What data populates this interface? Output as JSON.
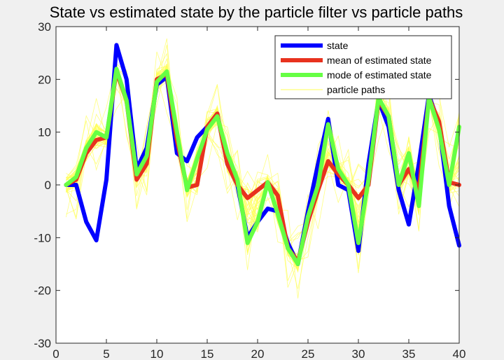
{
  "chart_data": {
    "type": "line",
    "title": "State vs estimated state by the particle filter vs particle paths",
    "xlabel": "",
    "ylabel": "",
    "xlim": [
      0,
      40
    ],
    "ylim": [
      -30,
      30
    ],
    "xticks": [
      0,
      5,
      10,
      15,
      20,
      25,
      30,
      35,
      40
    ],
    "yticks": [
      -30,
      -20,
      -10,
      0,
      10,
      20,
      30
    ],
    "xtick_labels": [
      "0",
      "5",
      "10",
      "15",
      "20",
      "25",
      "30",
      "35",
      "40"
    ],
    "ytick_labels": [
      "-30",
      "-20",
      "-10",
      "0",
      "10",
      "20",
      "30"
    ],
    "grid": false,
    "legend_position": "top-right",
    "x": [
      1,
      2,
      3,
      4,
      5,
      6,
      7,
      8,
      9,
      10,
      11,
      12,
      13,
      14,
      15,
      16,
      17,
      18,
      19,
      20,
      21,
      22,
      23,
      24,
      25,
      26,
      27,
      28,
      29,
      30,
      31,
      32,
      33,
      34,
      35,
      36,
      37,
      38,
      39,
      40
    ],
    "series": [
      {
        "name": "state",
        "color": "#0000ff",
        "values": [
          0,
          0,
          -7,
          -10.5,
          1,
          26.5,
          20,
          3,
          7,
          19,
          20.5,
          6,
          4.5,
          9,
          11,
          13.5,
          4,
          0,
          -10,
          -7,
          -4.5,
          -5,
          -11,
          -15,
          -5,
          4,
          12.5,
          0,
          -1,
          -12.5,
          4,
          16,
          11,
          -1,
          -7.5,
          4,
          17,
          11.5,
          -4,
          -11.5
        ]
      },
      {
        "name": "mean of estimated state",
        "color": "#e8321e",
        "values": [
          0,
          1,
          6,
          8.5,
          9,
          21.5,
          16,
          1,
          4,
          20,
          21,
          8.5,
          -0.5,
          0,
          11,
          13.5,
          4,
          0,
          -2.5,
          -1,
          0.5,
          -2,
          -12,
          -14.5,
          -7,
          -1,
          4.5,
          2,
          0,
          -2.5,
          0,
          16,
          13,
          0,
          3,
          -1,
          16.5,
          12,
          0.5,
          0
        ]
      },
      {
        "name": "mode of estimated state",
        "color": "#66ff44",
        "values": [
          0,
          1.5,
          7,
          10,
          9,
          22,
          16,
          2,
          5.5,
          19.5,
          21.5,
          10,
          -1,
          5,
          10.5,
          13,
          6,
          1,
          -11,
          -7,
          0.5,
          -5.5,
          -12,
          -15,
          -6,
          0,
          11.5,
          3,
          0,
          -11,
          1,
          16.5,
          13,
          0,
          6,
          -4,
          16.5,
          10.5,
          0,
          11
        ]
      },
      {
        "name": "particle paths",
        "color": "#ffff55"
      }
    ]
  }
}
